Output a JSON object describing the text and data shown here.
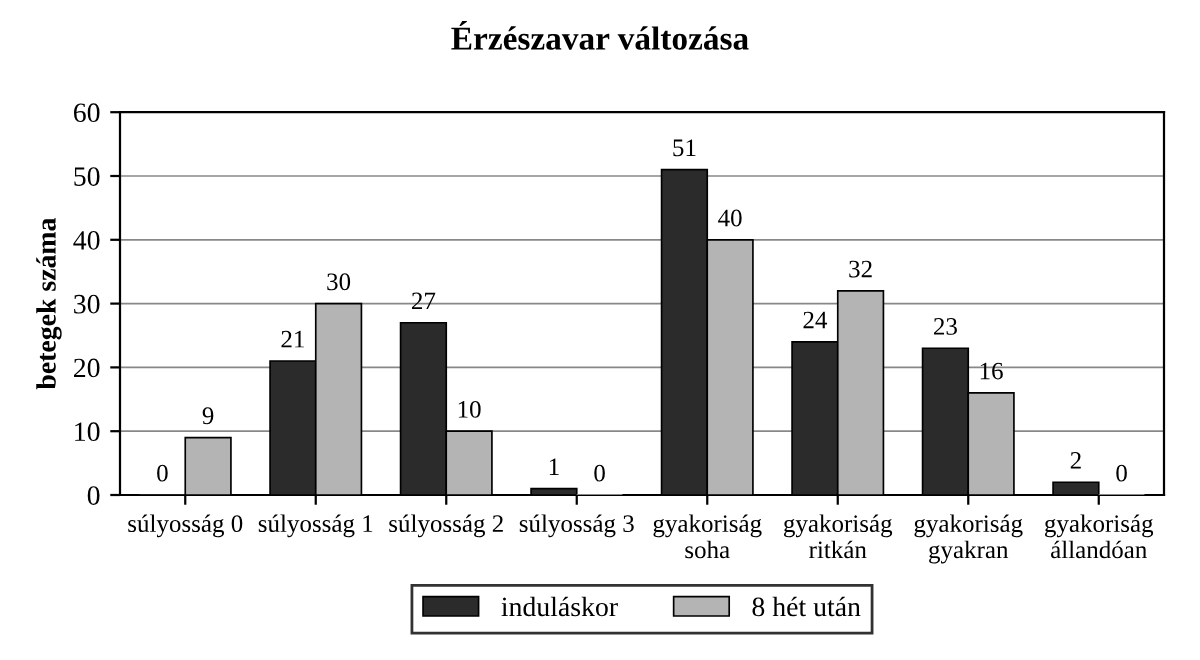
{
  "chart_data": {
    "type": "bar",
    "title": "Érzészavar változása",
    "ylabel": "betegek száma",
    "categories": [
      "súlyosság 0",
      "súlyosság 1",
      "súlyosság 2",
      "súlyosság 3",
      "gyakoriság\nsoha",
      "gyakoriság\nritkán",
      "gyakoriság\ngyakran",
      "gyakoriság\nállandóan"
    ],
    "series": [
      {
        "name": "induláskor",
        "color": "#2b2b2b",
        "values": [
          0,
          21,
          27,
          1,
          51,
          24,
          23,
          2
        ]
      },
      {
        "name": "8 hét után",
        "color": "#b4b4b4",
        "values": [
          9,
          30,
          10,
          0,
          40,
          32,
          16,
          0
        ]
      }
    ],
    "ylim": [
      0,
      60
    ],
    "yticks": [
      0,
      10,
      20,
      30,
      40,
      50,
      60
    ],
    "grid": "y",
    "legend": "bottom",
    "data_labels": true
  }
}
